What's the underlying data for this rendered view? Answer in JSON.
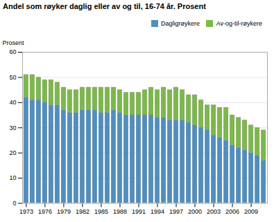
{
  "chart_data": {
    "type": "bar",
    "stacked": true,
    "title": "Andel som røyker daglig eller av og til, 16-74 år. Prosent",
    "ylabel": "Prosent",
    "x": [
      1973,
      1974,
      1975,
      1976,
      1977,
      1978,
      1979,
      1980,
      1981,
      1982,
      1983,
      1984,
      1985,
      1986,
      1987,
      1988,
      1989,
      1990,
      1991,
      1992,
      1993,
      1994,
      1995,
      1996,
      1997,
      1998,
      1999,
      2000,
      2001,
      2002,
      2003,
      2004,
      2005,
      2006,
      2007,
      2008,
      2009,
      2010,
      2011
    ],
    "series": [
      {
        "name": "Dagligrøykere",
        "color": "#4f8fbf",
        "values": [
          42,
          41,
          41,
          40,
          39,
          39,
          37,
          36,
          36,
          37,
          37,
          37,
          36,
          36,
          37,
          36,
          35,
          35,
          35,
          35,
          35,
          34,
          34,
          33,
          33,
          33,
          32,
          31,
          30,
          29,
          27,
          26,
          25,
          23,
          22,
          21,
          20,
          19,
          17
        ]
      },
      {
        "name": "Av-og-til-røykere",
        "color": "#7db84a",
        "values": [
          9,
          10,
          9,
          9,
          10,
          9,
          9,
          9,
          9,
          9,
          9,
          9,
          10,
          10,
          9,
          9,
          9,
          9,
          9,
          10,
          11,
          11,
          12,
          12,
          13,
          12,
          11,
          12,
          11,
          10,
          12,
          12,
          13,
          12,
          12,
          12,
          11,
          11,
          12
        ]
      }
    ],
    "xlim": [
      1972.4,
      2011.6
    ],
    "xticks": [
      1973,
      1976,
      1979,
      1982,
      1985,
      1988,
      1991,
      1994,
      1997,
      2000,
      2003,
      2006,
      2009
    ],
    "ylim": [
      0,
      60
    ],
    "yticks": [
      0,
      10,
      20,
      30,
      40,
      50,
      60
    ],
    "grid": true,
    "legend": "upper right"
  }
}
